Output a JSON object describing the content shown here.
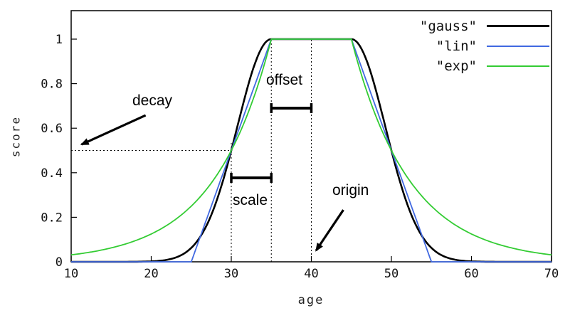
{
  "axes": {
    "x_label": "age",
    "y_label": "score"
  },
  "annotations": {
    "decay": "decay",
    "offset": "offset",
    "scale": "scale",
    "origin": "origin"
  },
  "chart_data": {
    "type": "line",
    "title": "",
    "xlabel": "age",
    "ylabel": "score",
    "xlim": [
      10,
      70
    ],
    "ylim": [
      0,
      1.13
    ],
    "x_ticks": [
      10,
      20,
      30,
      40,
      50,
      60,
      70
    ],
    "y_ticks": [
      0,
      0.2,
      0.4,
      0.6,
      0.8,
      1
    ],
    "grid": false,
    "legend_position": "top-right",
    "params": {
      "origin": 40,
      "offset": 5,
      "scale": 5,
      "decay": 0.5
    },
    "series": [
      {
        "name": "\"gauss\"",
        "fn": "gauss",
        "color": "#000000",
        "width": 2.6
      },
      {
        "name": "\"lin\"",
        "fn": "lin",
        "color": "#4169e1",
        "width": 1.8
      },
      {
        "name": "\"exp\"",
        "fn": "exp",
        "color": "#33cc33",
        "width": 1.8
      }
    ],
    "x_samples": [
      10,
      15,
      20,
      25,
      30,
      35,
      40,
      45,
      50,
      55,
      60,
      65,
      70
    ],
    "sample_values": {
      "gauss": [
        0,
        0,
        0.002,
        0.0625,
        0.5,
        1,
        1,
        1,
        0.5,
        0.0625,
        0.002,
        0,
        0
      ],
      "lin": [
        0,
        0,
        0,
        0,
        0.5,
        1,
        1,
        1,
        0.5,
        0,
        0,
        0,
        0
      ],
      "exp": [
        0.031,
        0.0625,
        0.125,
        0.25,
        0.5,
        1,
        1,
        1,
        0.5,
        0.25,
        0.125,
        0.0625,
        0.031
      ]
    },
    "guides": {
      "v_lines": [
        {
          "x": 30,
          "y_top": 0.54
        },
        {
          "x": 35,
          "y_top": 1
        },
        {
          "x": 40,
          "y_top": 1
        }
      ],
      "h_line": {
        "y": 0.5,
        "x_from": 10,
        "x_to": 30
      }
    },
    "brackets": [
      {
        "label": "offset",
        "x1": 35,
        "x2": 40,
        "y": 0.69
      },
      {
        "label": "scale",
        "x1": 30,
        "x2": 35,
        "y": 0.377
      }
    ],
    "arrows": [
      {
        "label": "decay",
        "from": {
          "x": 19.3,
          "y": 0.658
        },
        "to": {
          "x": 11.3,
          "y": 0.527
        }
      },
      {
        "label": "origin",
        "from": {
          "x": 44.0,
          "y": 0.233
        },
        "to": {
          "x": 40.6,
          "y": 0.051
        }
      }
    ]
  }
}
